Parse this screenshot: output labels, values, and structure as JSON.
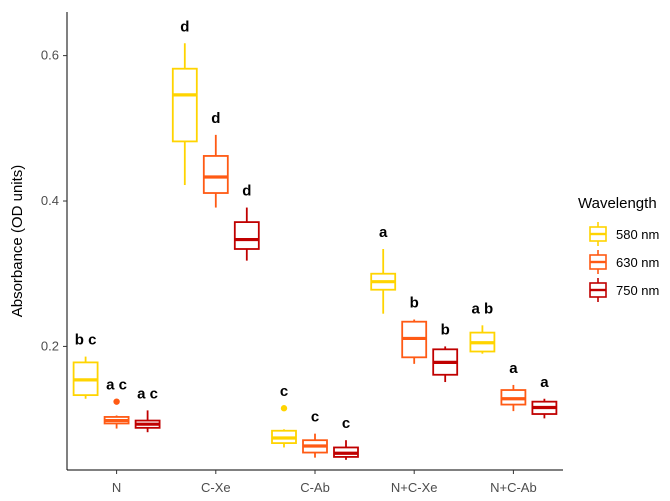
{
  "chart_data": {
    "type": "box",
    "ylabel": "Absorbance (OD units)",
    "xlabel": "",
    "ylim": [
      0.03,
      0.66
    ],
    "yticks": [
      0.2,
      0.4,
      0.6
    ],
    "categories": [
      "N",
      "C-Xe",
      "C-Ab",
      "N+C-Xe",
      "N+C-Ab"
    ],
    "legend": {
      "title": "Wavelength",
      "position": "right"
    },
    "series": [
      {
        "name": "580 nm",
        "color": "#FFD400",
        "boxes": [
          {
            "min": 0.128,
            "q1": 0.133,
            "median": 0.154,
            "q3": 0.178,
            "max": 0.186,
            "outliers": [],
            "label": "b c"
          },
          {
            "min": 0.422,
            "q1": 0.482,
            "median": 0.546,
            "q3": 0.582,
            "max": 0.617,
            "outliers": [],
            "label": "d"
          },
          {
            "min": 0.061,
            "q1": 0.067,
            "median": 0.074,
            "q3": 0.084,
            "max": 0.086,
            "outliers": [
              0.115
            ],
            "label": "c"
          },
          {
            "min": 0.245,
            "q1": 0.278,
            "median": 0.289,
            "q3": 0.3,
            "max": 0.334,
            "outliers": [],
            "label": "a"
          },
          {
            "min": 0.19,
            "q1": 0.193,
            "median": 0.205,
            "q3": 0.219,
            "max": 0.229,
            "outliers": [],
            "label": "a b"
          }
        ]
      },
      {
        "name": "630 nm",
        "color": "#FF5A14",
        "boxes": [
          {
            "min": 0.087,
            "q1": 0.094,
            "median": 0.098,
            "q3": 0.103,
            "max": 0.105,
            "outliers": [
              0.124
            ],
            "label": "a c"
          },
          {
            "min": 0.391,
            "q1": 0.411,
            "median": 0.433,
            "q3": 0.462,
            "max": 0.491,
            "outliers": [],
            "label": "d"
          },
          {
            "min": 0.047,
            "q1": 0.054,
            "median": 0.063,
            "q3": 0.071,
            "max": 0.08,
            "outliers": [],
            "label": "c"
          },
          {
            "min": 0.176,
            "q1": 0.185,
            "median": 0.211,
            "q3": 0.234,
            "max": 0.237,
            "outliers": [],
            "label": "b"
          },
          {
            "min": 0.111,
            "q1": 0.12,
            "median": 0.128,
            "q3": 0.14,
            "max": 0.147,
            "outliers": [],
            "label": "a"
          }
        ]
      },
      {
        "name": "750 nm",
        "color": "#C00000",
        "boxes": [
          {
            "min": 0.082,
            "q1": 0.088,
            "median": 0.093,
            "q3": 0.098,
            "max": 0.112,
            "outliers": [],
            "label": "a c"
          },
          {
            "min": 0.318,
            "q1": 0.334,
            "median": 0.347,
            "q3": 0.371,
            "max": 0.391,
            "outliers": [],
            "label": "d"
          },
          {
            "min": 0.044,
            "q1": 0.048,
            "median": 0.053,
            "q3": 0.061,
            "max": 0.071,
            "outliers": [],
            "label": "c"
          },
          {
            "min": 0.151,
            "q1": 0.161,
            "median": 0.178,
            "q3": 0.196,
            "max": 0.2,
            "outliers": [],
            "label": "b"
          },
          {
            "min": 0.101,
            "q1": 0.107,
            "median": 0.116,
            "q3": 0.124,
            "max": 0.128,
            "outliers": [],
            "label": "a"
          }
        ]
      }
    ]
  }
}
